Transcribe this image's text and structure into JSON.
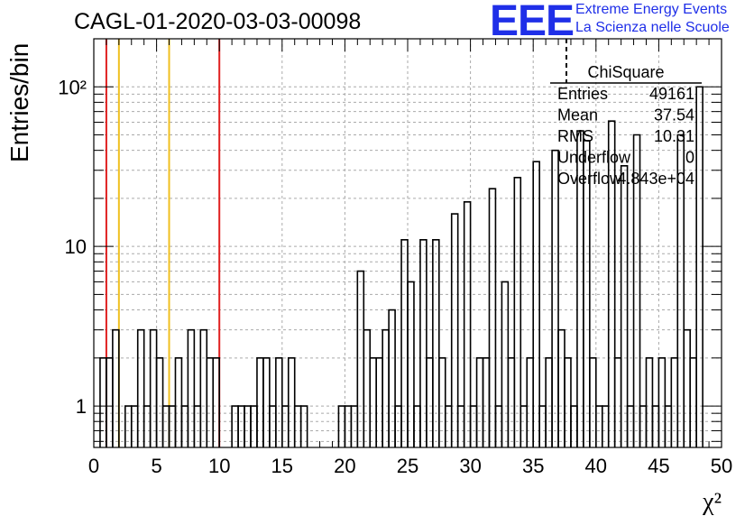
{
  "header": {
    "title": "CAGL-01-2020-03-03-00098",
    "logo_text": "EEE",
    "logo_line1": "Extreme Energy Events",
    "logo_line2": "La Scienza nelle Scuole"
  },
  "chart_data": {
    "type": "bar",
    "title": "CAGL-01-2020-03-03-00098",
    "xlabel": "χ²",
    "ylabel": "Entries/bin",
    "x_scale": "linear",
    "y_scale": "log",
    "xlim": [
      0,
      50
    ],
    "ylim": [
      0.55,
      200
    ],
    "grid": true,
    "bin_width": 0.5,
    "x_ticks": [
      0,
      5,
      10,
      15,
      20,
      25,
      30,
      35,
      40,
      45,
      50
    ],
    "y_ticks": [
      {
        "value": 1,
        "label": "1"
      },
      {
        "value": 10,
        "label": "10"
      },
      {
        "value": 100,
        "label": "10²"
      }
    ],
    "vertical_lines": [
      {
        "x": 1,
        "color": "#e02020"
      },
      {
        "x": 2,
        "color": "#f0c020"
      },
      {
        "x": 6,
        "color": "#f0c020"
      },
      {
        "x": 10,
        "color": "#e02020"
      }
    ],
    "bins": [
      {
        "x": 0.5,
        "value": 2
      },
      {
        "x": 1.0,
        "value": 2
      },
      {
        "x": 1.5,
        "value": 3
      },
      {
        "x": 2.5,
        "value": 1
      },
      {
        "x": 3.0,
        "value": 1
      },
      {
        "x": 3.5,
        "value": 3
      },
      {
        "x": 4.0,
        "value": 1
      },
      {
        "x": 4.5,
        "value": 3
      },
      {
        "x": 5.0,
        "value": 2
      },
      {
        "x": 5.5,
        "value": 1
      },
      {
        "x": 6.0,
        "value": 1
      },
      {
        "x": 6.5,
        "value": 2
      },
      {
        "x": 7.0,
        "value": 1
      },
      {
        "x": 7.5,
        "value": 3
      },
      {
        "x": 8.0,
        "value": 1
      },
      {
        "x": 8.5,
        "value": 3
      },
      {
        "x": 9.0,
        "value": 2
      },
      {
        "x": 9.5,
        "value": 2
      },
      {
        "x": 11.0,
        "value": 1
      },
      {
        "x": 11.5,
        "value": 1
      },
      {
        "x": 12.0,
        "value": 1
      },
      {
        "x": 12.5,
        "value": 1
      },
      {
        "x": 13.0,
        "value": 2
      },
      {
        "x": 13.5,
        "value": 2
      },
      {
        "x": 14.0,
        "value": 1
      },
      {
        "x": 14.5,
        "value": 2
      },
      {
        "x": 15.0,
        "value": 1
      },
      {
        "x": 15.5,
        "value": 2
      },
      {
        "x": 16.0,
        "value": 1
      },
      {
        "x": 16.5,
        "value": 1
      },
      {
        "x": 19.5,
        "value": 1
      },
      {
        "x": 20.0,
        "value": 1
      },
      {
        "x": 20.5,
        "value": 1
      },
      {
        "x": 21.0,
        "value": 7
      },
      {
        "x": 21.5,
        "value": 3
      },
      {
        "x": 22.0,
        "value": 2
      },
      {
        "x": 22.5,
        "value": 2
      },
      {
        "x": 23.0,
        "value": 3
      },
      {
        "x": 23.5,
        "value": 4
      },
      {
        "x": 24.0,
        "value": 1
      },
      {
        "x": 24.5,
        "value": 11
      },
      {
        "x": 25.0,
        "value": 6
      },
      {
        "x": 25.5,
        "value": 1
      },
      {
        "x": 26.0,
        "value": 11
      },
      {
        "x": 26.5,
        "value": 2
      },
      {
        "x": 27.0,
        "value": 11
      },
      {
        "x": 27.5,
        "value": 2
      },
      {
        "x": 28.0,
        "value": 1
      },
      {
        "x": 28.5,
        "value": 16
      },
      {
        "x": 29.0,
        "value": 1
      },
      {
        "x": 29.5,
        "value": 19
      },
      {
        "x": 30.0,
        "value": 1
      },
      {
        "x": 30.5,
        "value": 2
      },
      {
        "x": 31.0,
        "value": 2
      },
      {
        "x": 31.5,
        "value": 23
      },
      {
        "x": 32.0,
        "value": 1
      },
      {
        "x": 32.5,
        "value": 6
      },
      {
        "x": 33.0,
        "value": 2
      },
      {
        "x": 33.5,
        "value": 27
      },
      {
        "x": 34.0,
        "value": 1
      },
      {
        "x": 34.5,
        "value": 2
      },
      {
        "x": 35.0,
        "value": 34
      },
      {
        "x": 35.5,
        "value": 1
      },
      {
        "x": 36.0,
        "value": 2
      },
      {
        "x": 36.5,
        "value": 40
      },
      {
        "x": 37.0,
        "value": 3
      },
      {
        "x": 37.5,
        "value": 2
      },
      {
        "x": 38.0,
        "value": 1
      },
      {
        "x": 38.5,
        "value": 53
      },
      {
        "x": 39.0,
        "value": 46
      },
      {
        "x": 39.5,
        "value": 2
      },
      {
        "x": 40.0,
        "value": 1
      },
      {
        "x": 40.5,
        "value": 1
      },
      {
        "x": 41.0,
        "value": 61
      },
      {
        "x": 41.5,
        "value": 2
      },
      {
        "x": 42.0,
        "value": 32
      },
      {
        "x": 42.5,
        "value": 1
      },
      {
        "x": 43.0,
        "value": 50
      },
      {
        "x": 43.5,
        "value": 1
      },
      {
        "x": 44.0,
        "value": 2
      },
      {
        "x": 44.5,
        "value": 1
      },
      {
        "x": 45.0,
        "value": 2
      },
      {
        "x": 45.5,
        "value": 1
      },
      {
        "x": 46.0,
        "value": 2
      },
      {
        "x": 46.5,
        "value": 50
      },
      {
        "x": 47.0,
        "value": 3
      },
      {
        "x": 47.5,
        "value": 2
      },
      {
        "x": 48.0,
        "value": 100
      }
    ]
  },
  "stats_box": {
    "title": "ChiSquare",
    "rows": [
      {
        "label": "Entries",
        "value": "49161"
      },
      {
        "label": "Mean",
        "value": "37.54"
      },
      {
        "label": "RMS",
        "value": "10.31"
      },
      {
        "label": "Underflow",
        "value": "0"
      },
      {
        "label": "Overflow",
        "value": "4.843e+04"
      }
    ]
  }
}
